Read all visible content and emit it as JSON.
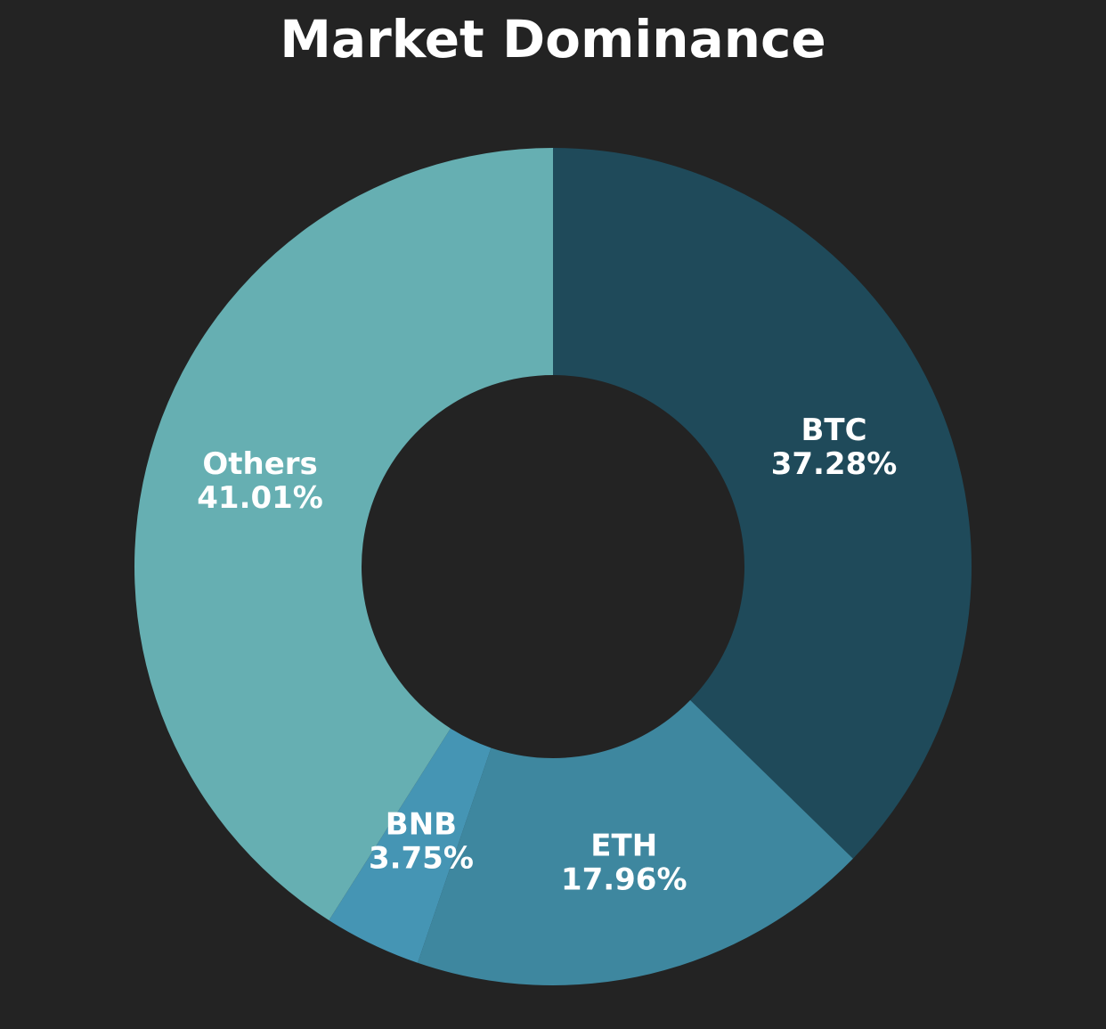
{
  "chart_data": {
    "type": "donut",
    "title": "Market Dominance",
    "categories": [
      "BTC",
      "ETH",
      "BNB",
      "Others"
    ],
    "values": [
      37.28,
      17.96,
      3.75,
      41.01
    ],
    "value_labels": [
      "37.28%",
      "17.96%",
      "3.75%",
      "41.01%"
    ],
    "colors": [
      "#1f4a5a",
      "#3e879f",
      "#4595b4",
      "#66afb2"
    ]
  }
}
